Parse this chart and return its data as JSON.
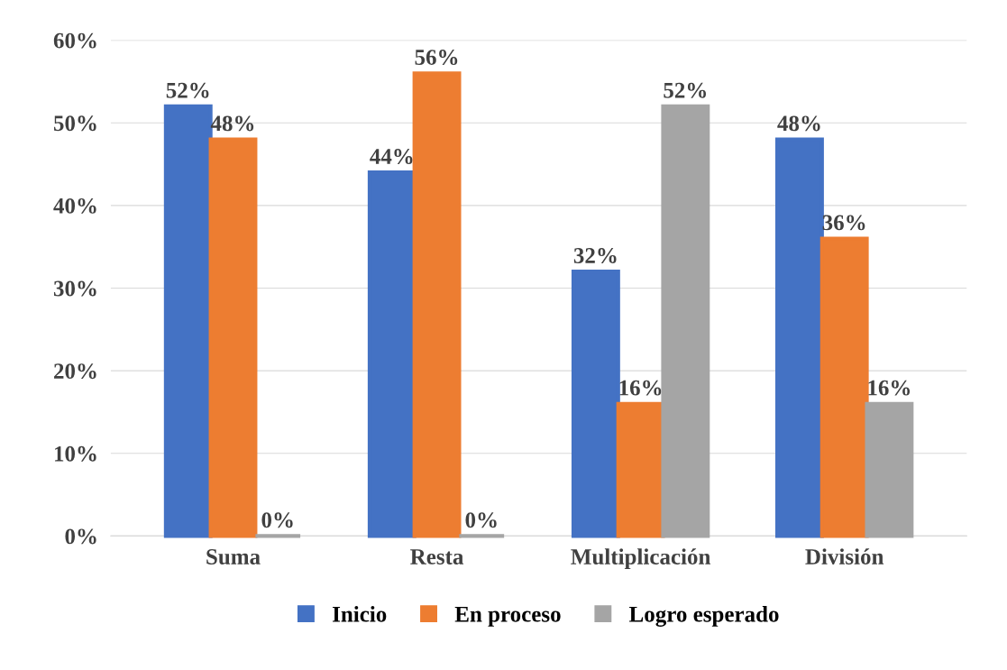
{
  "chart_data": {
    "type": "bar",
    "categories": [
      "Suma",
      "Resta",
      "Multiplicación",
      "División"
    ],
    "series": [
      {
        "name": "Inicio",
        "color": "#4472c4",
        "values": [
          52,
          44,
          32,
          48
        ],
        "value_labels": [
          "52%",
          "44%",
          "32%",
          "48%"
        ]
      },
      {
        "name": "En proceso",
        "color": "#ed7d31",
        "values": [
          48,
          56,
          16,
          36
        ],
        "value_labels": [
          "48%",
          "56%",
          "16%",
          "36%"
        ]
      },
      {
        "name": "Logro esperado",
        "color": "#a5a5a5",
        "values": [
          0,
          0,
          52,
          16
        ],
        "value_labels": [
          "0%",
          "0%",
          "52%",
          "16%"
        ]
      }
    ],
    "ylim": [
      0,
      60
    ],
    "yticks": [
      {
        "value": 0,
        "label": "0%"
      },
      {
        "value": 10,
        "label": "10%"
      },
      {
        "value": 20,
        "label": "20%"
      },
      {
        "value": 30,
        "label": "30%"
      },
      {
        "value": 40,
        "label": "40%"
      },
      {
        "value": 50,
        "label": "50%"
      },
      {
        "value": 60,
        "label": "60%"
      }
    ],
    "grid": "y",
    "legend": "bottom"
  }
}
